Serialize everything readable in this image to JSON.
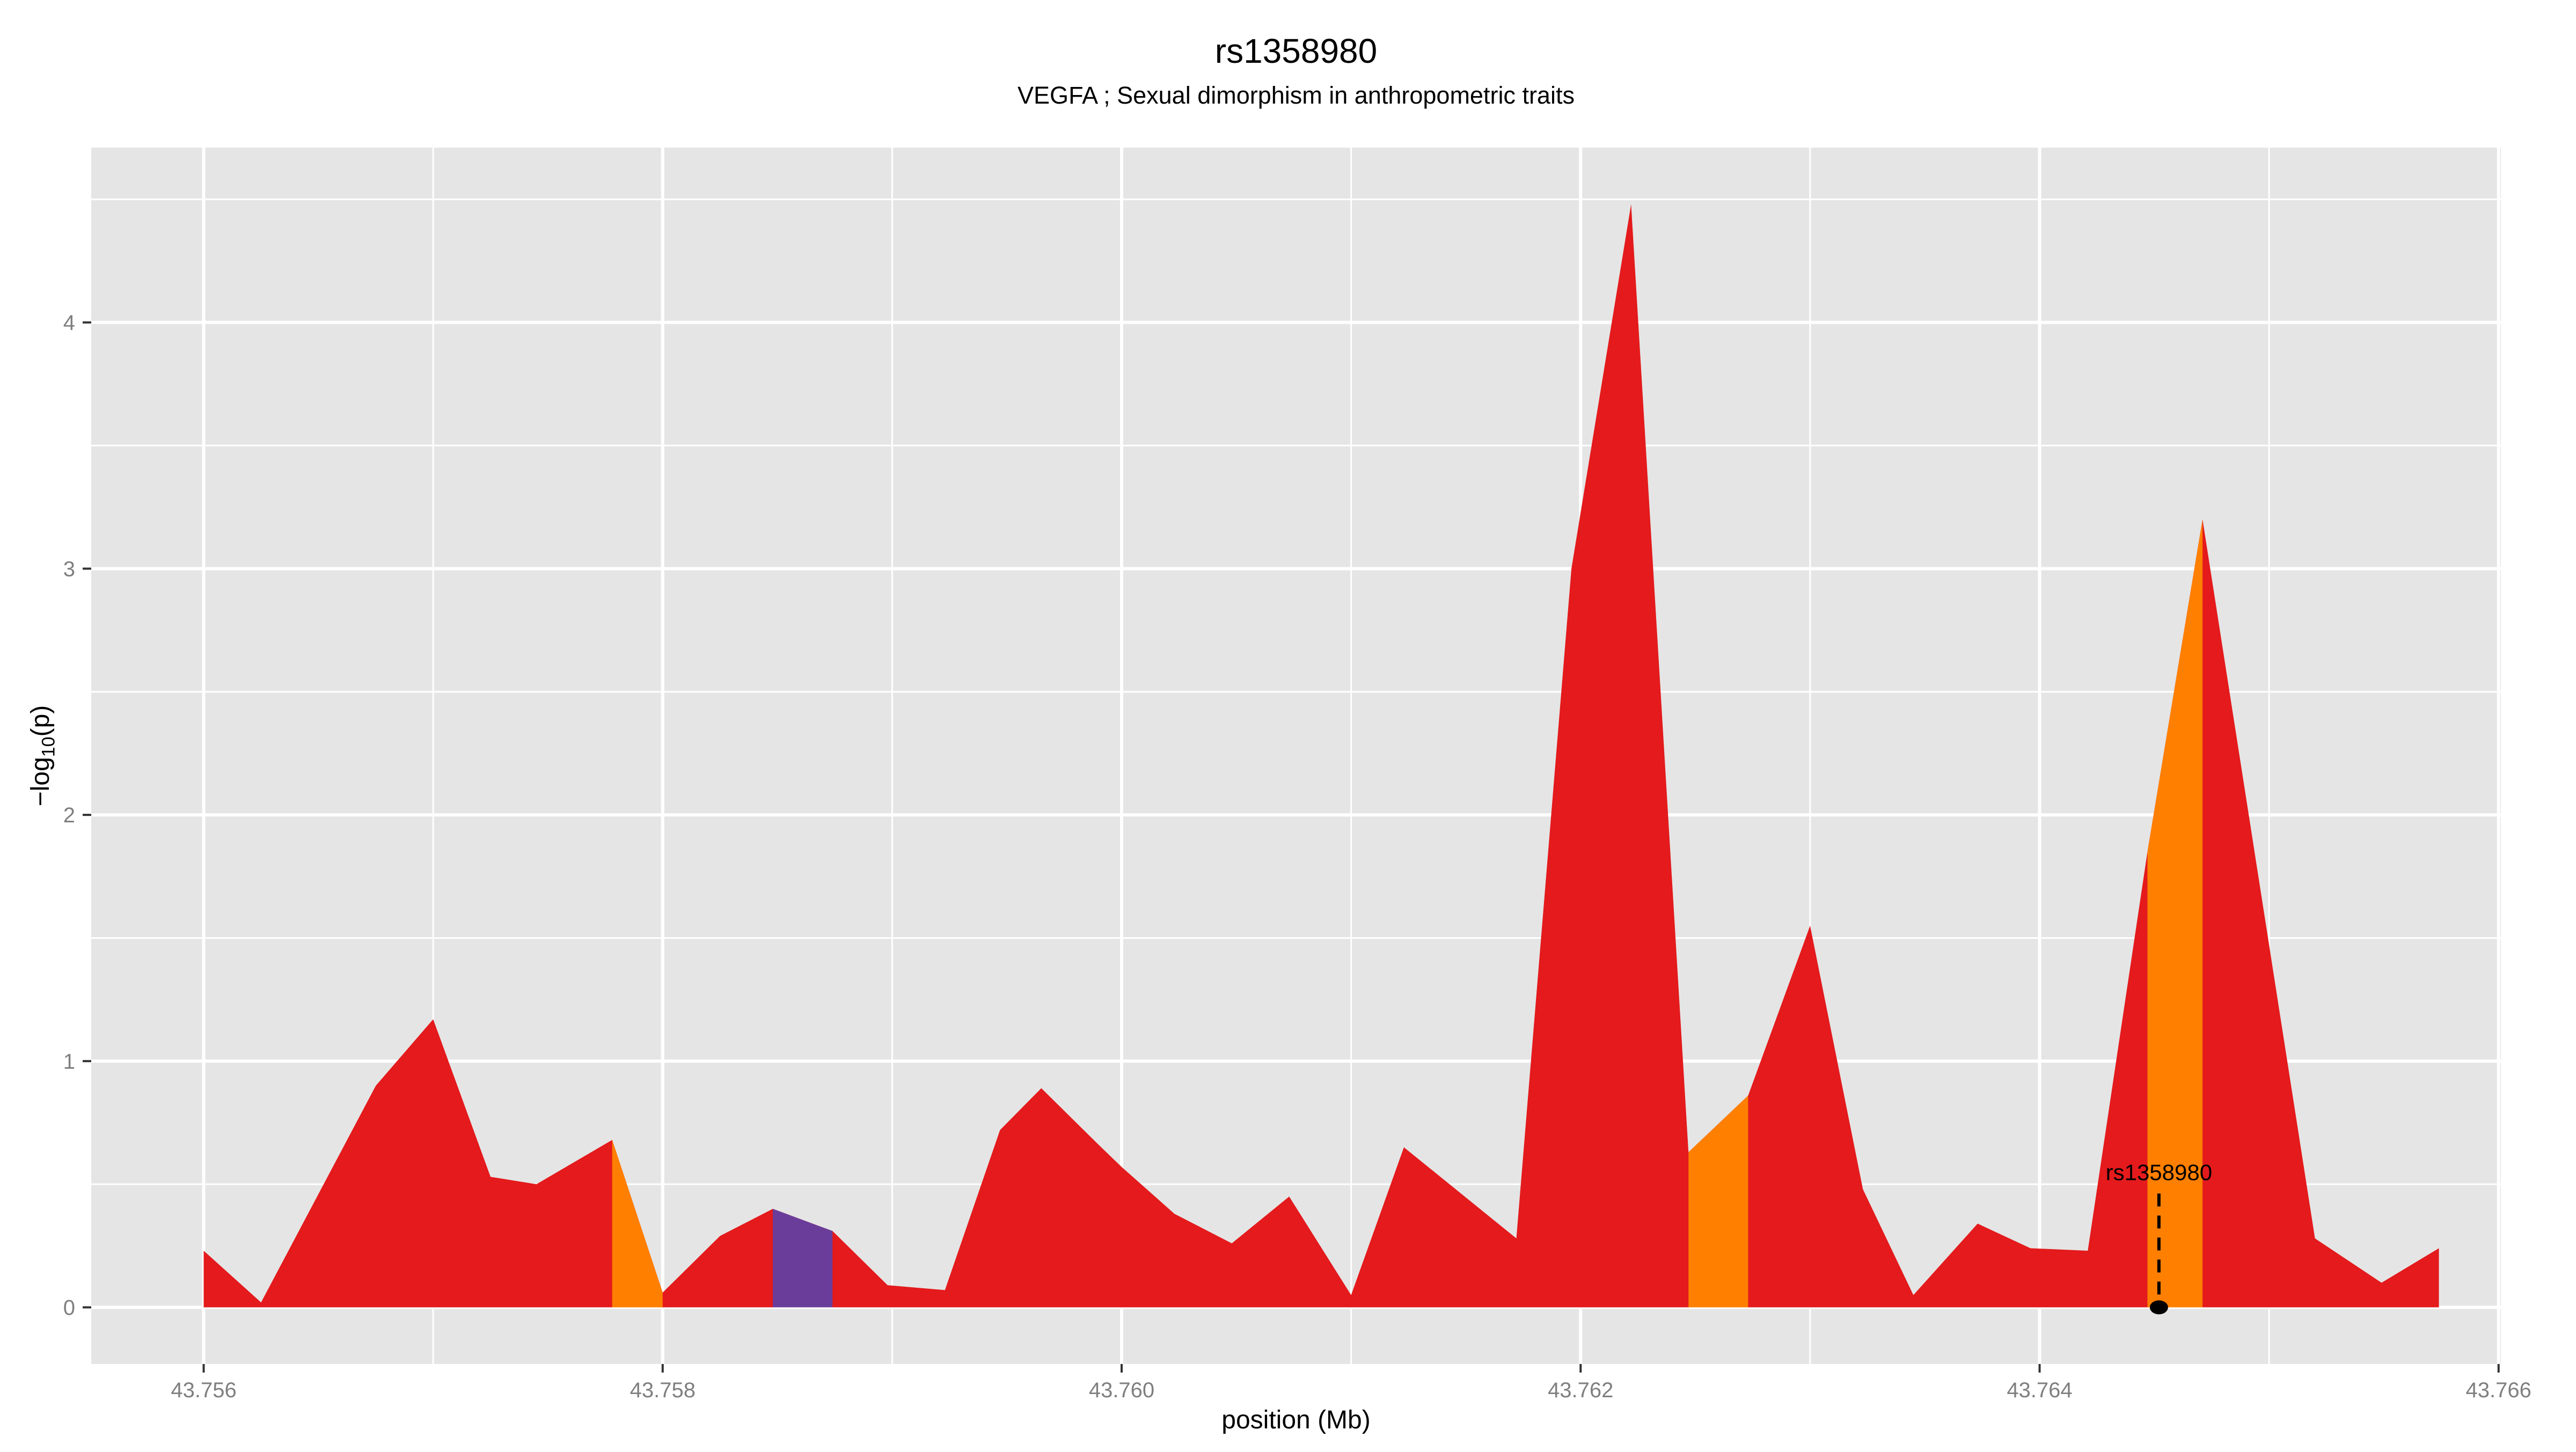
{
  "colors": {
    "red": "#E41A1C",
    "orange": "#FF7F00",
    "purple": "#6A3D9A",
    "panel_bg": "#E5E5E5",
    "grid": "#FFFFFF",
    "tick_text": "#7F7F7F",
    "tick_mark": "#333333",
    "annotation": "#000000"
  },
  "y_axis_label": {
    "prefix": "−log",
    "sub": "10",
    "suffix": "(p)"
  },
  "chart_data": {
    "type": "area",
    "title": "rs1358980",
    "subtitle": "VEGFA ; Sexual dimorphism in anthropometric traits",
    "xlabel": "position (Mb)",
    "ylabel": "-log10(p)",
    "xlim": [
      43.75551,
      43.76601
    ],
    "ylim": [
      -0.23,
      4.71
    ],
    "grid": "white major+minor gridlines on gray panel",
    "legend": "none",
    "x_major_ticks": [
      43.756,
      43.758,
      43.76,
      43.762,
      43.764,
      43.766
    ],
    "x_major_tick_labels": [
      "43.756",
      "43.758",
      "43.760",
      "43.762",
      "43.764",
      "43.766"
    ],
    "x_minor_ticks": [
      43.757,
      43.759,
      43.761,
      43.763,
      43.765
    ],
    "y_major_ticks": [
      0,
      1,
      2,
      3,
      4
    ],
    "y_major_tick_labels": [
      "0",
      "1",
      "2",
      "3",
      "4"
    ],
    "y_minor_ticks": [
      0.5,
      1.5,
      2.5,
      3.5,
      4.5
    ],
    "points": [
      [
        43.756,
        0.23
      ],
      [
        43.75625,
        0.02
      ],
      [
        43.75675,
        0.9
      ],
      [
        43.757,
        1.17
      ],
      [
        43.75725,
        0.53
      ],
      [
        43.75745,
        0.5
      ],
      [
        43.75778,
        0.68
      ],
      [
        43.758,
        0.06
      ],
      [
        43.75825,
        0.29
      ],
      [
        43.75848,
        0.4
      ],
      [
        43.75874,
        0.31
      ],
      [
        43.75898,
        0.09
      ],
      [
        43.75923,
        0.07
      ],
      [
        43.75947,
        0.72
      ],
      [
        43.75965,
        0.89
      ],
      [
        43.7599,
        0.66
      ],
      [
        43.76,
        0.57
      ],
      [
        43.76023,
        0.38
      ],
      [
        43.76048,
        0.26
      ],
      [
        43.76073,
        0.45
      ],
      [
        43.761,
        0.05
      ],
      [
        43.76123,
        0.65
      ],
      [
        43.76172,
        0.28
      ],
      [
        43.76196,
        3.0
      ],
      [
        43.76222,
        4.48
      ],
      [
        43.76247,
        0.63
      ],
      [
        43.76273,
        0.86
      ],
      [
        43.763,
        1.55
      ],
      [
        43.76323,
        0.48
      ],
      [
        43.76345,
        0.05
      ],
      [
        43.76373,
        0.34
      ],
      [
        43.76396,
        0.24
      ],
      [
        43.76421,
        0.23
      ],
      [
        43.76447,
        1.85
      ],
      [
        43.76471,
        3.2
      ],
      [
        43.7652,
        0.28
      ],
      [
        43.76549,
        0.1
      ],
      [
        43.76574,
        0.24
      ]
    ],
    "default_fill": "#E41A1C",
    "fill_segments": [
      {
        "start": 43.75778,
        "end": 43.758,
        "color": "#FF7F00"
      },
      {
        "start": 43.75848,
        "end": 43.75874,
        "color": "#6A3D9A"
      },
      {
        "start": 43.76247,
        "end": 43.76273,
        "color": "#FF7F00"
      },
      {
        "start": 43.76447,
        "end": 43.76471,
        "color": "#FF7F00"
      }
    ],
    "annotation": {
      "label": "rs1358980",
      "x": 43.76452,
      "y": 0
    }
  }
}
